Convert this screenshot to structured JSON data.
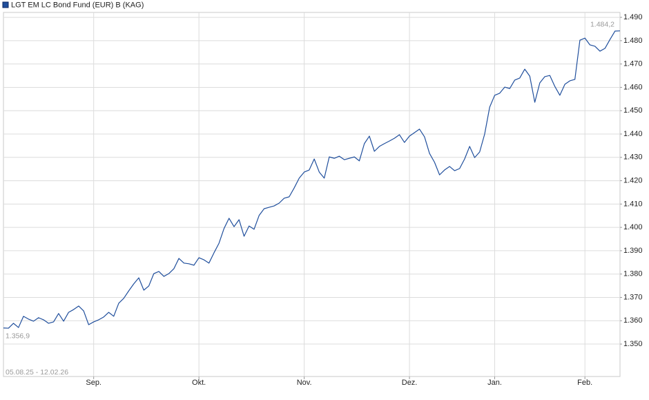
{
  "chart_data": {
    "type": "line",
    "period": "05.08.25 - 12.02.26",
    "series": [
      {
        "name": "LGT EM LC Bond Fund (EUR) B (KAG)",
        "color": "#1f4e9c",
        "values": [
          1.3569,
          1.3568,
          1.3589,
          1.3571,
          1.3619,
          1.3607,
          1.3598,
          1.3613,
          1.3604,
          1.3589,
          1.3595,
          1.3631,
          1.3598,
          1.3636,
          1.3648,
          1.3663,
          1.3642,
          1.3583,
          1.3595,
          1.3604,
          1.3616,
          1.3636,
          1.3619,
          1.3675,
          1.3696,
          1.3728,
          1.3758,
          1.3784,
          1.3731,
          1.3749,
          1.3802,
          1.3811,
          1.379,
          1.3802,
          1.3823,
          1.3867,
          1.3847,
          1.3844,
          1.3838,
          1.387,
          1.3861,
          1.3847,
          1.3891,
          1.3932,
          1.3995,
          1.4039,
          1.4003,
          1.4033,
          1.3962,
          1.4006,
          1.3992,
          1.4051,
          1.408,
          1.4086,
          1.4092,
          1.4104,
          1.4125,
          1.4131,
          1.4169,
          1.4211,
          1.4237,
          1.4246,
          1.4293,
          1.4237,
          1.4211,
          1.4302,
          1.4296,
          1.4305,
          1.429,
          1.4296,
          1.4302,
          1.4285,
          1.4359,
          1.4391,
          1.4326,
          1.4347,
          1.4359,
          1.437,
          1.4382,
          1.4397,
          1.4364,
          1.4391,
          1.4406,
          1.4421,
          1.4388,
          1.4317,
          1.4279,
          1.4225,
          1.4246,
          1.4261,
          1.4243,
          1.4252,
          1.4293,
          1.4347,
          1.4299,
          1.4323,
          1.44,
          1.4515,
          1.4566,
          1.4575,
          1.4601,
          1.4595,
          1.4631,
          1.464,
          1.4678,
          1.4648,
          1.4536,
          1.4619,
          1.4646,
          1.4651,
          1.4604,
          1.4566,
          1.4613,
          1.4628,
          1.4634,
          1.4802,
          1.4811,
          1.4782,
          1.4776,
          1.4755,
          1.4767,
          1.4805,
          1.4841,
          1.4842
        ],
        "value_labels": [
          "1.356,9",
          null,
          null,
          null,
          null,
          null,
          null,
          null,
          null,
          null,
          null,
          null,
          null,
          null,
          null,
          null,
          null,
          null,
          null,
          null,
          null,
          null,
          null,
          null,
          null,
          null,
          null,
          null,
          null,
          null,
          null,
          null,
          null,
          null,
          null,
          null,
          null,
          null,
          null,
          null,
          null,
          null,
          null,
          null,
          null,
          null,
          null,
          null,
          null,
          null,
          null,
          null,
          null,
          null,
          null,
          null,
          null,
          null,
          null,
          null,
          null,
          null,
          null,
          null,
          null,
          null,
          null,
          null,
          null,
          null,
          null,
          null,
          null,
          null,
          null,
          null,
          null,
          null,
          null,
          null,
          null,
          null,
          null,
          null,
          null,
          null,
          null,
          null,
          null,
          null,
          null,
          null,
          null,
          null,
          null,
          null,
          null,
          null,
          null,
          null,
          null,
          null,
          null,
          null,
          null,
          null,
          null,
          null,
          null,
          null,
          null,
          null,
          null,
          null,
          null,
          null,
          null,
          null,
          null,
          null,
          null,
          null,
          null,
          "1.484,2"
        ]
      }
    ],
    "xlim": [
      0,
      123
    ],
    "xticks": [
      {
        "value": 18,
        "label": "Sep."
      },
      {
        "value": 39,
        "label": "Okt."
      },
      {
        "value": 60,
        "label": "Nov."
      },
      {
        "value": 81,
        "label": "Dez."
      },
      {
        "value": 98,
        "label": "Jan."
      },
      {
        "value": 116,
        "label": "Feb."
      }
    ],
    "ylim": [
      1.3361,
      1.4921
    ],
    "yticks": [
      {
        "value": 1.35,
        "label": "1.350"
      },
      {
        "value": 1.36,
        "label": "1.360"
      },
      {
        "value": 1.37,
        "label": "1.370"
      },
      {
        "value": 1.38,
        "label": "1.380"
      },
      {
        "value": 1.39,
        "label": "1.390"
      },
      {
        "value": 1.4,
        "label": "1.400"
      },
      {
        "value": 1.41,
        "label": "1.410"
      },
      {
        "value": 1.42,
        "label": "1.420"
      },
      {
        "value": 1.43,
        "label": "1.430"
      },
      {
        "value": 1.44,
        "label": "1.440"
      },
      {
        "value": 1.45,
        "label": "1.450"
      },
      {
        "value": 1.46,
        "label": "1.460"
      },
      {
        "value": 1.47,
        "label": "1.470"
      },
      {
        "value": 1.48,
        "label": "1.480"
      },
      {
        "value": 1.49,
        "label": "1.490"
      }
    ],
    "grid": true
  }
}
